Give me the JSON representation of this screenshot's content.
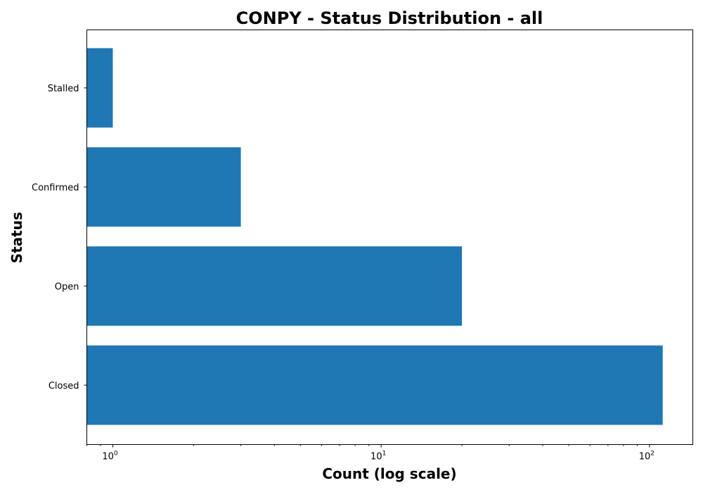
{
  "chart_data": {
    "type": "bar",
    "orientation": "horizontal",
    "title": "CONPY - Status Distribution - all",
    "xlabel": "Count (log scale)",
    "ylabel": "Status",
    "categories": [
      "Closed",
      "Open",
      "Confirmed",
      "Stalled"
    ],
    "values": [
      112,
      20,
      3,
      1
    ],
    "x_scale": "log",
    "xlim": [
      0.8,
      145
    ],
    "x_ticks": [
      {
        "value": 1,
        "base": "10",
        "exponent": "0"
      },
      {
        "value": 10,
        "base": "10",
        "exponent": "1"
      },
      {
        "value": 100,
        "base": "10",
        "exponent": "2"
      }
    ],
    "grid": false,
    "legend": "none",
    "bar_color": "#1f77b4"
  }
}
